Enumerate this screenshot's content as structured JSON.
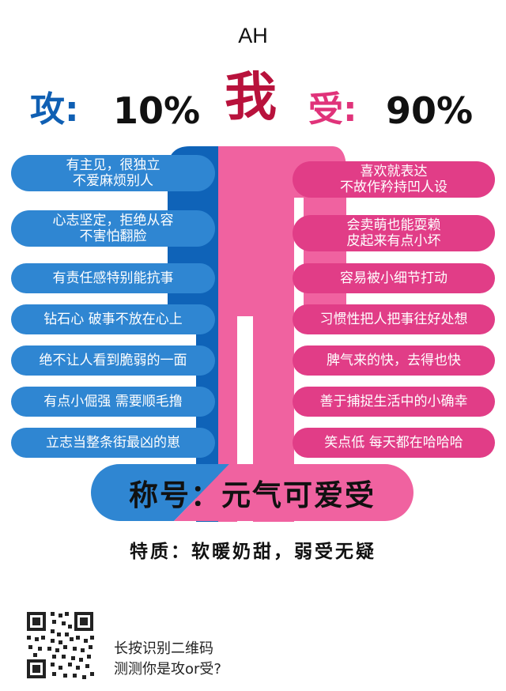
{
  "header": {
    "name": "AH",
    "wo": "我",
    "gong_label": "攻:",
    "gong_percent": "10%",
    "shou_label": "受:",
    "shou_percent": "90%"
  },
  "left_traits": [
    "有主见，很独立\n不爱麻烦别人",
    "心志坚定，拒绝从容\n不害怕翻脸",
    "有责任感特别能抗事",
    "钻石心 破事不放在心上",
    "绝不让人看到脆弱的一面",
    "有点小倔强  需要顺毛撸",
    "立志当整条街最凶的崽"
  ],
  "right_traits": [
    "喜欢就表达\n不故作矜持凹人设",
    "会卖萌也能耍赖\n皮起来有点小坏",
    "容易被小细节打动",
    "习惯性把人把事往好处想",
    "脾气来的快，去得也快",
    "善于捕捉生活中的小确幸",
    "笑点低  每天都在哈哈哈"
  ],
  "title": "称号：元气可爱受",
  "trait_line": "特质：软暖奶甜，弱受无疑",
  "qr": {
    "line1": "长按识别二维码",
    "line2": "测测你是攻or受?"
  },
  "colors": {
    "gong": "#0f5fb3",
    "gong_light": "#2f86d2",
    "shou": "#f062a0",
    "shou_strong": "#e13d87",
    "wo": "#b8123c"
  }
}
